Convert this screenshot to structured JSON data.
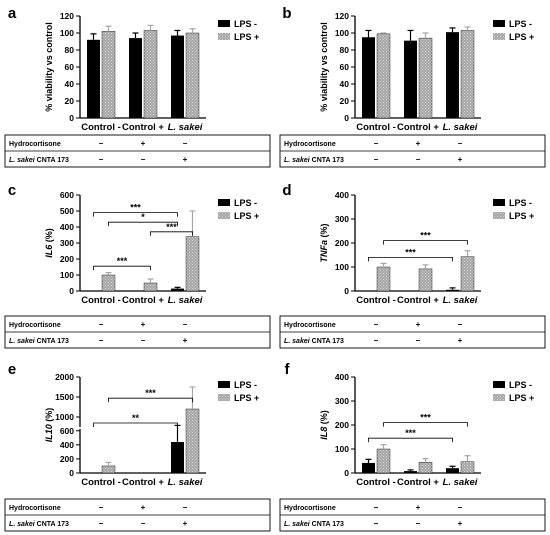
{
  "colors": {
    "lps_minus": "#000000",
    "lps_plus": "#a6a6a6",
    "axis": "#000000"
  },
  "legend": {
    "lps_minus": "LPS -",
    "lps_plus": "LPS +"
  },
  "treatment_table": {
    "row_labels": [
      "Hydrocortisone",
      "L. sakei CNTA 173"
    ],
    "hydrocortisone": [
      "−",
      "+",
      "−"
    ],
    "lsakei": [
      "−",
      "−",
      "+"
    ]
  },
  "chart_data": [
    {
      "panel": "a",
      "type": "bar",
      "ylabel": "% viability vs control",
      "ylabel_italic_prefix": "",
      "categories": [
        "Control -",
        "Control +",
        "L. sakei"
      ],
      "category_italic": [
        false,
        false,
        true
      ],
      "yticks": [
        0,
        20,
        40,
        60,
        80,
        100,
        120
      ],
      "ylim": [
        0,
        120
      ],
      "series": [
        {
          "name": "LPS -",
          "values": [
            92,
            94,
            97
          ],
          "errors": [
            7,
            6,
            6
          ]
        },
        {
          "name": "LPS +",
          "values": [
            102,
            103,
            100
          ],
          "errors": [
            6,
            6,
            5
          ]
        }
      ],
      "significance": []
    },
    {
      "panel": "b",
      "type": "bar",
      "ylabel": "% viability vs control",
      "ylabel_italic_prefix": "",
      "categories": [
        "Control -",
        "Control +",
        "L. sakei"
      ],
      "category_italic": [
        false,
        false,
        true
      ],
      "yticks": [
        0,
        20,
        40,
        60,
        80,
        100,
        120
      ],
      "ylim": [
        0,
        120
      ],
      "series": [
        {
          "name": "LPS -",
          "values": [
            95,
            91,
            101
          ],
          "errors": [
            8,
            12,
            5
          ]
        },
        {
          "name": "LPS +",
          "values": [
            99,
            94,
            103
          ],
          "errors": [
            1,
            6,
            4
          ]
        }
      ],
      "significance": []
    },
    {
      "panel": "c",
      "type": "bar",
      "ylabel": "(%)",
      "ylabel_italic_prefix": "IL6",
      "categories": [
        "Control -",
        "Control +",
        "L. sakei"
      ],
      "category_italic": [
        false,
        false,
        true
      ],
      "yticks": [
        0,
        100,
        200,
        300,
        400,
        500,
        600
      ],
      "ylim": [
        0,
        600
      ],
      "series": [
        {
          "name": "LPS -",
          "values": [
            0,
            0,
            15
          ],
          "errors": [
            0,
            0,
            8
          ]
        },
        {
          "name": "LPS +",
          "values": [
            100,
            50,
            340
          ],
          "errors": [
            15,
            25,
            160
          ]
        }
      ],
      "significance": [
        {
          "label": "***",
          "y": 490,
          "from": "0-0",
          "to": "2-0"
        },
        {
          "label": "*",
          "y": 430,
          "from": "0-1",
          "to": "2-0"
        },
        {
          "label": "***",
          "y": 370,
          "from": "1-1",
          "to": "2-1"
        },
        {
          "label": "***",
          "y": 155,
          "from": "0-0",
          "to": "1-1"
        }
      ]
    },
    {
      "panel": "d",
      "type": "bar",
      "ylabel": "(%)",
      "ylabel_italic_prefix": "TNFa",
      "categories": [
        "Control -",
        "Control +",
        "L. sakei"
      ],
      "category_italic": [
        false,
        false,
        true
      ],
      "yticks": [
        0,
        100,
        200,
        300,
        400
      ],
      "ylim": [
        0,
        400
      ],
      "series": [
        {
          "name": "LPS -",
          "values": [
            0,
            0,
            5
          ],
          "errors": [
            0,
            0,
            8
          ]
        },
        {
          "name": "LPS +",
          "values": [
            100,
            92,
            143
          ],
          "errors": [
            15,
            17,
            25
          ]
        }
      ],
      "significance": [
        {
          "label": "***",
          "y": 210,
          "from": "0-1",
          "to": "2-1"
        },
        {
          "label": "***",
          "y": 140,
          "from": "0-0",
          "to": "2-0"
        }
      ]
    },
    {
      "panel": "e",
      "type": "bar",
      "ylabel": "(%)",
      "ylabel_italic_prefix": "IL10",
      "categories": [
        "Control -",
        "Control +",
        "L. sakei"
      ],
      "category_italic": [
        false,
        false,
        true
      ],
      "yticks": [
        0,
        200,
        400,
        600,
        1000,
        1500,
        2000
      ],
      "ylim": [
        0,
        2000
      ],
      "axis_break": {
        "below": 600,
        "above": 800
      },
      "series": [
        {
          "name": "LPS -",
          "values": [
            0,
            0,
            440
          ],
          "errors": [
            0,
            0,
            350
          ]
        },
        {
          "name": "LPS +",
          "values": [
            100,
            0,
            1200
          ],
          "errors": [
            50,
            0,
            550
          ]
        }
      ],
      "significance": [
        {
          "label": "***",
          "y": 1470,
          "from": "0-1",
          "to": "2-1"
        },
        {
          "label": "**",
          "y": 850,
          "from": "0-0",
          "to": "2-0"
        }
      ]
    },
    {
      "panel": "f",
      "type": "bar",
      "ylabel": "(%)",
      "ylabel_italic_prefix": "IL8",
      "categories": [
        "Control -",
        "Control +",
        "L. sakei"
      ],
      "category_italic": [
        false,
        false,
        true
      ],
      "yticks": [
        0,
        100,
        200,
        300,
        400
      ],
      "ylim": [
        0,
        400
      ],
      "series": [
        {
          "name": "LPS -",
          "values": [
            42,
            8,
            20
          ],
          "errors": [
            15,
            5,
            8
          ]
        },
        {
          "name": "LPS +",
          "values": [
            100,
            45,
            47
          ],
          "errors": [
            18,
            15,
            25
          ]
        }
      ],
      "significance": [
        {
          "label": "***",
          "y": 210,
          "from": "0-1",
          "to": "2-1"
        },
        {
          "label": "***",
          "y": 145,
          "from": "0-0",
          "to": "2-0"
        }
      ]
    }
  ]
}
